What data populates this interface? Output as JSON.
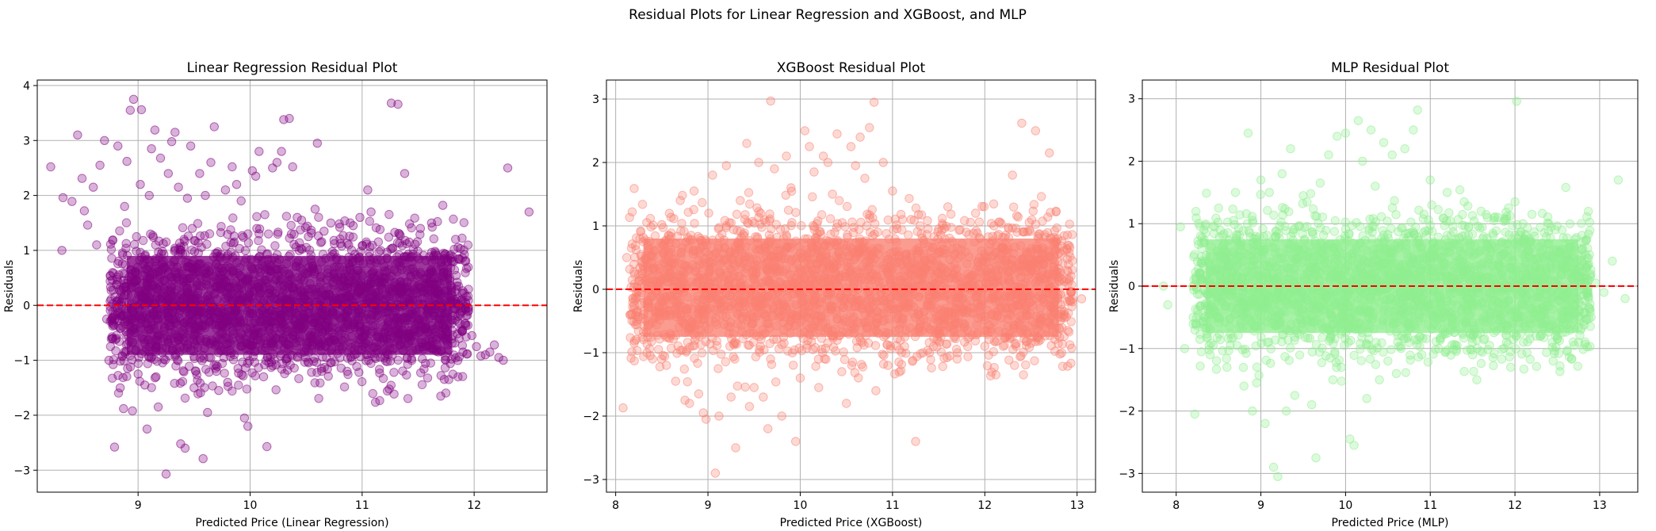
{
  "figure": {
    "suptitle": "Residual Plots for Linear Regression and XGBoost, and MLP"
  },
  "chart_data": [
    {
      "type": "scatter",
      "title": "Linear Regression Residual Plot",
      "xlabel": "Predicted Price (Linear Regression)",
      "ylabel": "Residuals",
      "xlim": [
        8.1,
        12.65
      ],
      "ylim": [
        -3.4,
        4.1
      ],
      "xticks": [
        9,
        10,
        11,
        12
      ],
      "yticks": [
        -3,
        -2,
        -1,
        0,
        1,
        2,
        3,
        4
      ],
      "grid": true,
      "point_color": "#800080",
      "point_alpha": 0.3,
      "reference_line": {
        "y": 0,
        "color": "#ff0000",
        "style": "dashed"
      },
      "dense_band": {
        "x": [
          8.75,
          11.95
        ],
        "y": [
          -1.0,
          1.0
        ]
      },
      "points": [
        [
          8.22,
          2.52
        ],
        [
          8.32,
          1.0
        ],
        [
          8.33,
          1.96
        ],
        [
          8.41,
          1.89
        ],
        [
          8.46,
          3.1
        ],
        [
          8.5,
          2.31
        ],
        [
          8.52,
          1.72
        ],
        [
          8.55,
          1.46
        ],
        [
          8.6,
          2.15
        ],
        [
          8.63,
          1.1
        ],
        [
          8.66,
          2.55
        ],
        [
          8.7,
          3.0
        ],
        [
          8.72,
          -0.25
        ],
        [
          8.74,
          -1.0
        ],
        [
          8.77,
          -0.6
        ],
        [
          8.79,
          -2.58
        ],
        [
          8.82,
          2.9
        ],
        [
          8.84,
          -1.5
        ],
        [
          8.87,
          -1.88
        ],
        [
          8.88,
          1.8
        ],
        [
          8.9,
          2.62
        ],
        [
          8.93,
          3.55
        ],
        [
          8.95,
          -1.92
        ],
        [
          8.96,
          3.75
        ],
        [
          9.0,
          -1.25
        ],
        [
          9.02,
          2.2
        ],
        [
          9.03,
          3.56
        ],
        [
          9.06,
          -1.45
        ],
        [
          9.08,
          -2.25
        ],
        [
          9.1,
          2.0
        ],
        [
          9.12,
          2.85
        ],
        [
          9.15,
          3.19
        ],
        [
          9.16,
          -1.3
        ],
        [
          9.18,
          -1.85
        ],
        [
          9.2,
          2.68
        ],
        [
          9.25,
          -3.07
        ],
        [
          9.27,
          2.4
        ],
        [
          9.3,
          2.98
        ],
        [
          9.33,
          3.15
        ],
        [
          9.36,
          2.15
        ],
        [
          9.38,
          -2.52
        ],
        [
          9.42,
          -2.6
        ],
        [
          9.44,
          1.95
        ],
        [
          9.47,
          2.9
        ],
        [
          9.5,
          -1.5
        ],
        [
          9.55,
          2.4
        ],
        [
          9.58,
          -2.79
        ],
        [
          9.6,
          2.0
        ],
        [
          9.62,
          -1.95
        ],
        [
          9.65,
          2.6
        ],
        [
          9.68,
          3.25
        ],
        [
          9.7,
          -1.2
        ],
        [
          9.72,
          -1.55
        ],
        [
          9.78,
          2.1
        ],
        [
          9.8,
          -1.4
        ],
        [
          9.84,
          2.52
        ],
        [
          9.88,
          2.2
        ],
        [
          9.92,
          1.9
        ],
        [
          9.95,
          -2.05
        ],
        [
          9.98,
          -2.2
        ],
        [
          10.02,
          2.45
        ],
        [
          10.05,
          2.35
        ],
        [
          10.08,
          2.8
        ],
        [
          10.12,
          -1.3
        ],
        [
          10.15,
          -2.57
        ],
        [
          10.2,
          2.5
        ],
        [
          10.24,
          2.6
        ],
        [
          10.28,
          2.8
        ],
        [
          10.3,
          3.38
        ],
        [
          10.35,
          3.4
        ],
        [
          10.38,
          2.52
        ],
        [
          10.42,
          1.6
        ],
        [
          10.46,
          1.55
        ],
        [
          10.52,
          1.25
        ],
        [
          10.58,
          1.75
        ],
        [
          10.6,
          2.95
        ],
        [
          10.66,
          1.35
        ],
        [
          10.72,
          1.5
        ],
        [
          10.8,
          1.42
        ],
        [
          10.88,
          1.1
        ],
        [
          10.92,
          1.45
        ],
        [
          10.98,
          1.6
        ],
        [
          11.05,
          2.1
        ],
        [
          11.08,
          1.7
        ],
        [
          11.16,
          1.38
        ],
        [
          11.26,
          3.68
        ],
        [
          11.32,
          3.66
        ],
        [
          11.38,
          2.4
        ],
        [
          11.42,
          1.15
        ],
        [
          11.52,
          1.4
        ],
        [
          11.62,
          1.5
        ],
        [
          11.72,
          1.82
        ],
        [
          11.78,
          0.9
        ],
        [
          11.86,
          0.85
        ],
        [
          11.92,
          0.8
        ],
        [
          11.98,
          -0.55
        ],
        [
          12.02,
          -0.75
        ],
        [
          12.06,
          -0.92
        ],
        [
          12.14,
          -0.85
        ],
        [
          12.18,
          -0.72
        ],
        [
          12.22,
          -0.95
        ],
        [
          12.26,
          -1.0
        ],
        [
          12.3,
          2.5
        ],
        [
          12.49,
          1.7
        ],
        [
          11.6,
          -0.62
        ],
        [
          11.75,
          -0.48
        ],
        [
          11.85,
          -0.52
        ],
        [
          11.9,
          -0.85
        ],
        [
          12.1,
          -0.9
        ],
        [
          11.4,
          -0.95
        ]
      ]
    },
    {
      "type": "scatter",
      "title": "XGBoost Residual Plot",
      "xlabel": "Predicted Price (XGBoost)",
      "ylabel": "Residuals",
      "xlim": [
        7.9,
        13.2
      ],
      "ylim": [
        -3.2,
        3.3
      ],
      "xticks": [
        8,
        9,
        10,
        11,
        12,
        13
      ],
      "yticks": [
        -3,
        -2,
        -1,
        0,
        1,
        2,
        3
      ],
      "grid": true,
      "point_color": "#fa8072",
      "point_alpha": 0.3,
      "reference_line": {
        "y": 0,
        "color": "#ff0000",
        "style": "dashed"
      },
      "dense_band": {
        "x": [
          8.15,
          12.95
        ],
        "y": [
          -0.85,
          0.9
        ]
      },
      "points": [
        [
          8.08,
          -1.87
        ],
        [
          8.12,
          0.5
        ],
        [
          8.18,
          -0.4
        ],
        [
          8.2,
          -0.85
        ],
        [
          8.3,
          0.75
        ],
        [
          8.4,
          -1.1
        ],
        [
          8.5,
          1.02
        ],
        [
          8.55,
          -1.2
        ],
        [
          8.65,
          -1.45
        ],
        [
          8.7,
          1.4
        ],
        [
          8.75,
          -1.75
        ],
        [
          8.8,
          -1.8
        ],
        [
          8.85,
          1.55
        ],
        [
          8.9,
          -1.65
        ],
        [
          8.95,
          -1.95
        ],
        [
          8.98,
          -2.05
        ],
        [
          9.05,
          1.8
        ],
        [
          9.08,
          -2.9
        ],
        [
          9.12,
          -2.0
        ],
        [
          9.2,
          1.95
        ],
        [
          9.25,
          -1.7
        ],
        [
          9.3,
          -2.5
        ],
        [
          9.35,
          1.4
        ],
        [
          9.42,
          2.3
        ],
        [
          9.45,
          -1.85
        ],
        [
          9.5,
          -1.55
        ],
        [
          9.55,
          2.0
        ],
        [
          9.6,
          -1.7
        ],
        [
          9.65,
          -2.2
        ],
        [
          9.68,
          2.97
        ],
        [
          9.72,
          1.9
        ],
        [
          9.8,
          -2.0
        ],
        [
          9.85,
          2.1
        ],
        [
          9.9,
          1.6
        ],
        [
          9.95,
          -2.4
        ],
        [
          10.0,
          -1.4
        ],
        [
          10.05,
          2.5
        ],
        [
          10.1,
          2.25
        ],
        [
          10.15,
          1.85
        ],
        [
          10.2,
          -1.55
        ],
        [
          10.25,
          2.1
        ],
        [
          10.3,
          2.0
        ],
        [
          10.35,
          1.5
        ],
        [
          10.4,
          2.45
        ],
        [
          10.45,
          -1.3
        ],
        [
          10.5,
          -1.8
        ],
        [
          10.55,
          2.25
        ],
        [
          10.6,
          1.95
        ],
        [
          10.65,
          2.4
        ],
        [
          10.7,
          1.75
        ],
        [
          10.75,
          2.55
        ],
        [
          10.8,
          2.95
        ],
        [
          10.82,
          -1.6
        ],
        [
          10.9,
          2.0
        ],
        [
          10.95,
          -1.2
        ],
        [
          11.0,
          1.55
        ],
        [
          11.1,
          -1.0
        ],
        [
          11.2,
          1.1
        ],
        [
          11.25,
          -2.4
        ],
        [
          11.3,
          1.0
        ],
        [
          11.4,
          -1.0
        ],
        [
          11.5,
          0.95
        ],
        [
          11.6,
          1.3
        ],
        [
          11.7,
          -1.1
        ],
        [
          11.8,
          0.9
        ],
        [
          11.9,
          1.2
        ],
        [
          12.0,
          -0.9
        ],
        [
          12.1,
          1.0
        ],
        [
          12.2,
          -0.9
        ],
        [
          12.3,
          1.8
        ],
        [
          12.35,
          0.9
        ],
        [
          12.4,
          2.62
        ],
        [
          12.5,
          -0.85
        ],
        [
          12.55,
          2.5
        ],
        [
          12.6,
          -0.8
        ],
        [
          12.7,
          2.15
        ],
        [
          12.8,
          -0.4
        ],
        [
          12.9,
          -0.65
        ],
        [
          12.95,
          0.45
        ],
        [
          13.05,
          -0.15
        ]
      ]
    },
    {
      "type": "scatter",
      "title": "MLP Residual Plot",
      "xlabel": "Predicted Price (MLP)",
      "ylabel": "Residuals",
      "xlim": [
        7.6,
        13.45
      ],
      "ylim": [
        -3.3,
        3.3
      ],
      "xticks": [
        8,
        9,
        10,
        11,
        12,
        13
      ],
      "yticks": [
        -3,
        -2,
        -1,
        0,
        1,
        2,
        3
      ],
      "grid": true,
      "point_color": "#90ee90",
      "point_alpha": 0.3,
      "reference_line": {
        "y": 0,
        "color": "#ff0000",
        "style": "dashed"
      },
      "dense_band": {
        "x": [
          8.2,
          12.9
        ],
        "y": [
          -0.85,
          0.85
        ]
      },
      "points": [
        [
          7.85,
          0.0
        ],
        [
          7.9,
          -0.3
        ],
        [
          8.05,
          0.95
        ],
        [
          8.1,
          -1.0
        ],
        [
          8.2,
          -0.5
        ],
        [
          8.22,
          -2.05
        ],
        [
          8.3,
          0.6
        ],
        [
          8.4,
          -1.1
        ],
        [
          8.5,
          1.25
        ],
        [
          8.6,
          -1.3
        ],
        [
          8.7,
          1.5
        ],
        [
          8.8,
          -1.6
        ],
        [
          8.85,
          2.45
        ],
        [
          8.9,
          -2.0
        ],
        [
          8.95,
          -1.55
        ],
        [
          9.0,
          1.7
        ],
        [
          9.05,
          -2.2
        ],
        [
          9.1,
          1.5
        ],
        [
          9.15,
          -2.9
        ],
        [
          9.2,
          -3.05
        ],
        [
          9.25,
          1.8
        ],
        [
          9.3,
          -2.0
        ],
        [
          9.35,
          2.2
        ],
        [
          9.4,
          -1.75
        ],
        [
          9.5,
          1.45
        ],
        [
          9.6,
          -1.9
        ],
        [
          9.65,
          -2.75
        ],
        [
          9.7,
          1.65
        ],
        [
          9.8,
          2.1
        ],
        [
          9.85,
          -1.5
        ],
        [
          9.9,
          2.4
        ],
        [
          9.95,
          -1.3
        ],
        [
          10.0,
          2.45
        ],
        [
          10.05,
          -2.45
        ],
        [
          10.1,
          -2.55
        ],
        [
          10.15,
          2.65
        ],
        [
          10.2,
          2.0
        ],
        [
          10.25,
          -1.8
        ],
        [
          10.3,
          2.5
        ],
        [
          10.35,
          1.6
        ],
        [
          10.4,
          -1.5
        ],
        [
          10.45,
          2.3
        ],
        [
          10.5,
          -1.2
        ],
        [
          10.55,
          2.1
        ],
        [
          10.6,
          -1.4
        ],
        [
          10.7,
          2.2
        ],
        [
          10.8,
          2.5
        ],
        [
          10.85,
          2.82
        ],
        [
          10.9,
          -1.1
        ],
        [
          11.0,
          1.7
        ],
        [
          11.1,
          -1.0
        ],
        [
          11.2,
          1.5
        ],
        [
          11.3,
          -0.95
        ],
        [
          11.4,
          1.35
        ],
        [
          11.5,
          -1.1
        ],
        [
          11.6,
          1.2
        ],
        [
          11.7,
          -0.95
        ],
        [
          11.8,
          1.1
        ],
        [
          11.9,
          -0.9
        ],
        [
          12.0,
          1.35
        ],
        [
          12.02,
          2.96
        ],
        [
          12.1,
          -0.9
        ],
        [
          12.2,
          1.15
        ],
        [
          12.3,
          -0.8
        ],
        [
          12.4,
          1.0
        ],
        [
          12.5,
          -0.85
        ],
        [
          12.6,
          1.58
        ],
        [
          12.7,
          -0.95
        ],
        [
          12.75,
          -0.9
        ],
        [
          12.85,
          0.3
        ],
        [
          12.95,
          0.05
        ],
        [
          13.05,
          -0.1
        ],
        [
          13.15,
          0.4
        ],
        [
          13.22,
          1.7
        ],
        [
          13.3,
          -0.2
        ],
        [
          12.8,
          0.6
        ],
        [
          12.9,
          -0.5
        ],
        [
          11.95,
          -1.3
        ],
        [
          11.55,
          -1.5
        ],
        [
          12.45,
          -1.2
        ]
      ]
    }
  ]
}
